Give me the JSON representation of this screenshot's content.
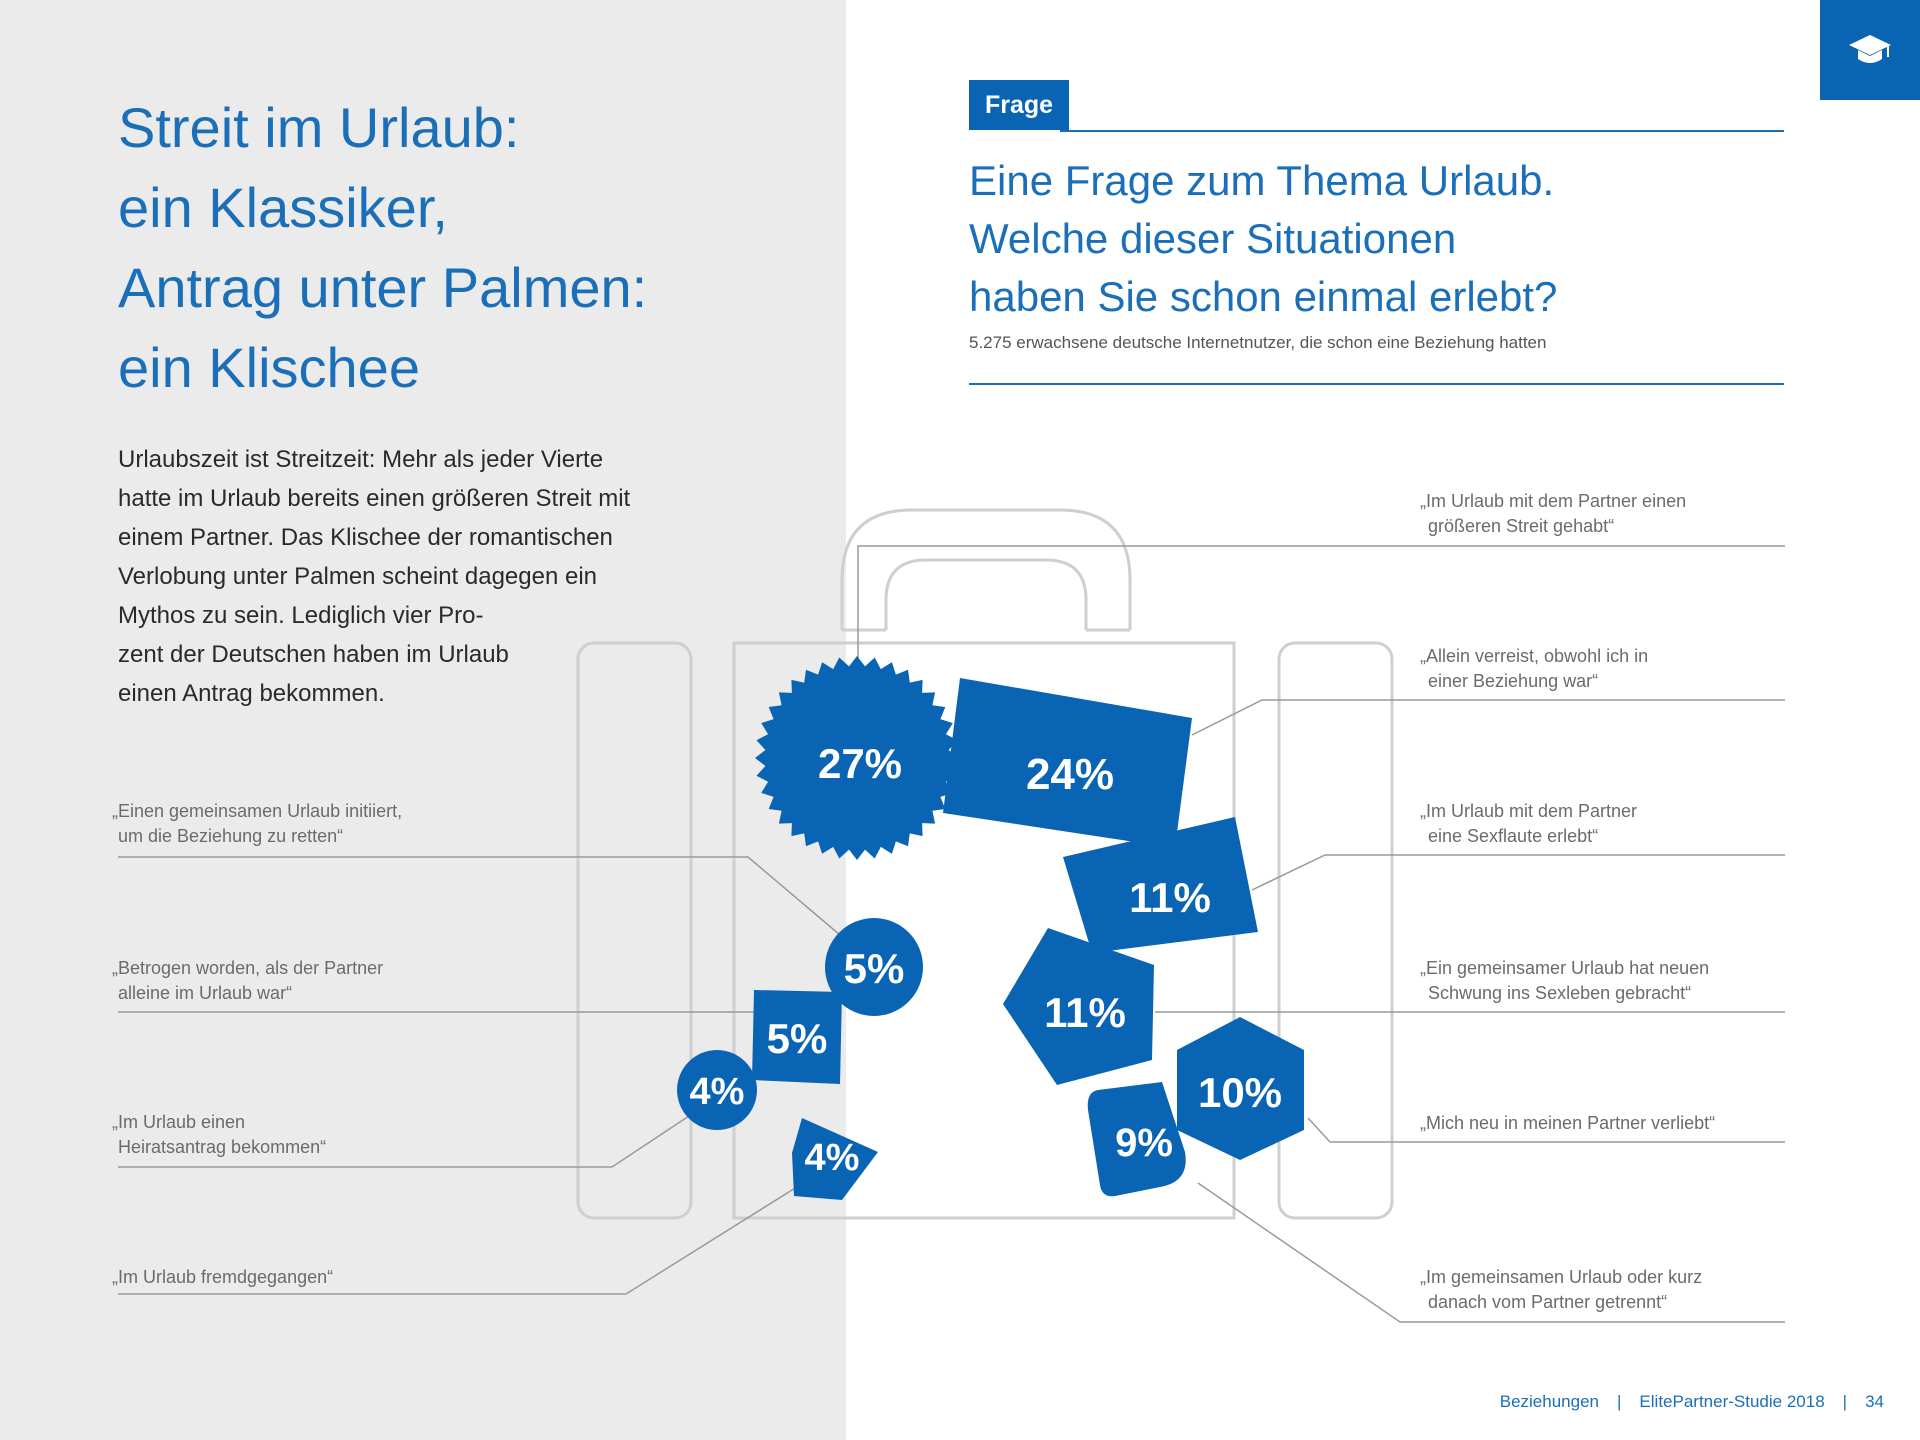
{
  "corner_icon": "graduation-cap-icon",
  "headline": [
    "Streit im Urlaub:",
    "ein Klassiker,",
    "Antrag unter Palmen:",
    "ein Klischee"
  ],
  "intro": [
    "Urlaubszeit ist Streitzeit: Mehr als jeder Vierte",
    "hatte im Urlaub bereits einen größeren Streit mit",
    "einem Partner. Das Klischee der romantischen",
    "Verlobung unter Palmen scheint dagegen ein",
    "Mythos zu sein. Lediglich vier Pro-",
    "zent der Deutschen haben im Urlaub",
    "einen Antrag bekommen."
  ],
  "frage_tag": "Frage",
  "question": [
    "Eine Frage zum Thema Urlaub.",
    "Welche dieser Situationen",
    "haben Sie schon einmal erlebt?"
  ],
  "sample": "5.275 erwachsene deutsche Internetnutzer, die schon eine Beziehung hatten",
  "items": [
    {
      "label": [
        "„Im Urlaub mit dem Partner einen",
        "größeren Streit gehabt“"
      ],
      "value": "27%"
    },
    {
      "label": [
        "„Allein verreist, obwohl ich in",
        "einer Beziehung war“"
      ],
      "value": "24%"
    },
    {
      "label": [
        "„Im Urlaub mit dem Partner",
        "eine Sexflaute erlebt“"
      ],
      "value": "11%"
    },
    {
      "label": [
        "„Ein gemeinsamer Urlaub hat neuen",
        "Schwung ins Sexleben gebracht“"
      ],
      "value": "11%"
    },
    {
      "label": [
        "„Mich neu in meinen Partner verliebt“"
      ],
      "value": "10%"
    },
    {
      "label": [
        "„Im gemeinsamen Urlaub oder kurz",
        "danach vom Partner getrennt“"
      ],
      "value": "9%"
    },
    {
      "label": [
        "„Einen gemeinsamen Urlaub initiiert,",
        "um die Beziehung zu retten“"
      ],
      "value": "5%"
    },
    {
      "label": [
        "„Betrogen worden, als der Partner",
        "alleine im Urlaub war“"
      ],
      "value": "5%"
    },
    {
      "label": [
        "„Im Urlaub einen",
        "Heiratsantrag bekommen“"
      ],
      "value": "4%"
    },
    {
      "label": [
        "„Im Urlaub fremdgegangen“"
      ],
      "value": "4%"
    }
  ],
  "footer": {
    "section": "Beziehungen",
    "study": "ElitePartner-Studie 2018",
    "page": "34"
  },
  "colors": {
    "accent": "#0a64b4",
    "text_blue": "#1b6fb8",
    "panel": "#ebebeb",
    "outline": "#cfcfcf"
  }
}
